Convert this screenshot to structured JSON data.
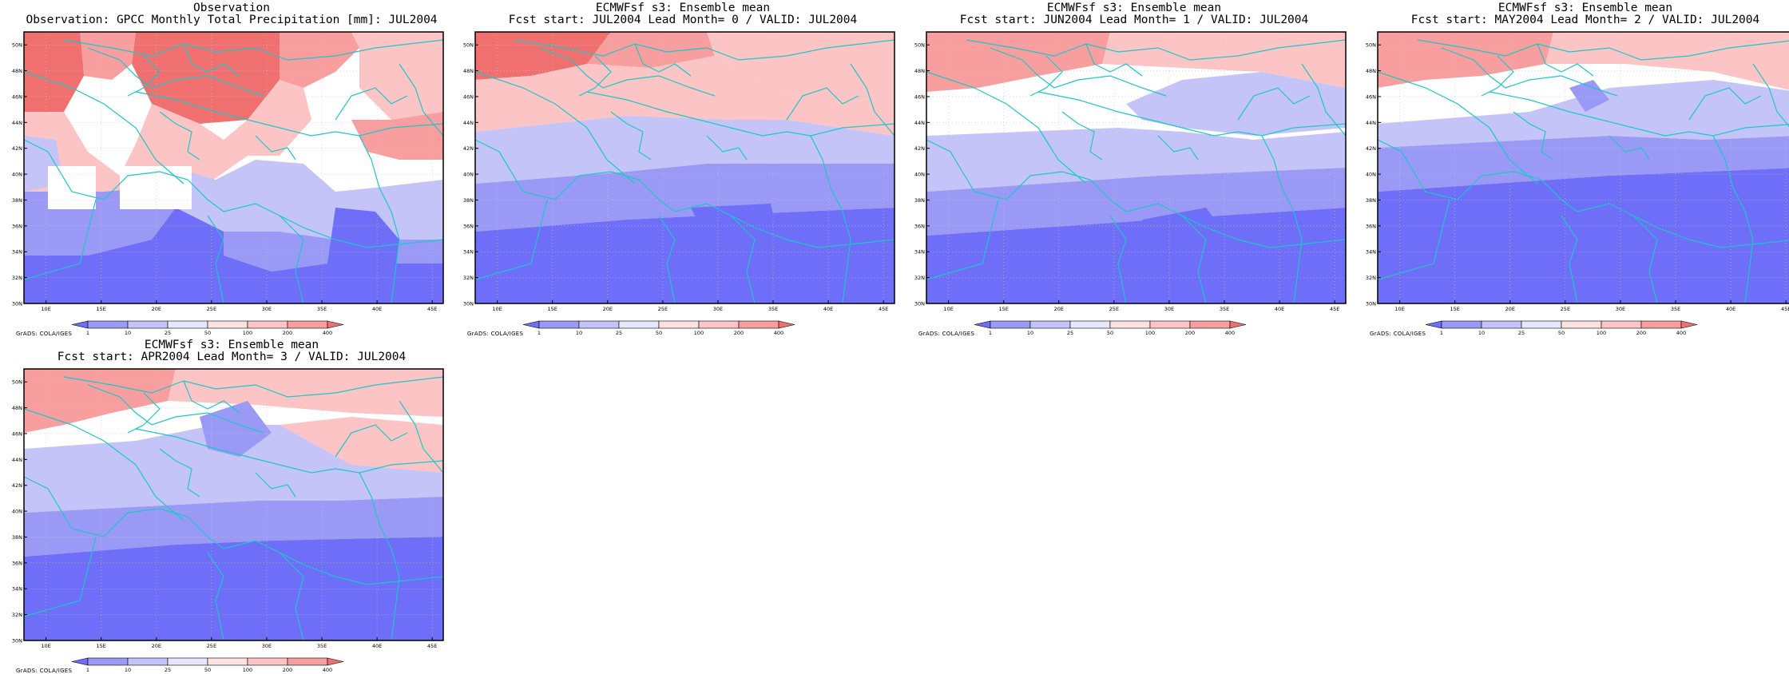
{
  "axes": {
    "lat_ticks": [
      "30N",
      "32N",
      "34N",
      "36N",
      "38N",
      "40N",
      "42N",
      "44N",
      "46N",
      "48N",
      "50N"
    ],
    "lon_ticks": [
      "10E",
      "15E",
      "20E",
      "25E",
      "30E",
      "35E",
      "40E",
      "45E"
    ],
    "lat_range": [
      30,
      51
    ],
    "lon_range": [
      8,
      46
    ]
  },
  "legend": {
    "levels": [
      "1",
      "10",
      "25",
      "50",
      "100",
      "200",
      "400"
    ],
    "colors": [
      "#6e6ef8",
      "#9a9af6",
      "#c4c4f8",
      "#e6e6fc",
      "#fde2e2",
      "#fcc4c4",
      "#f99e9e",
      "#f07070"
    ]
  },
  "credit": "GrADS: COLA/IGES",
  "panels": [
    {
      "title1": "Observation",
      "title2": "Observation: GPCC Monthly Total Precipitation [mm]: JUL2004"
    },
    {
      "title1": "ECMWFsf s3: Ensemble mean",
      "title2": "Fcst start: JUL2004  Lead Month= 0 / VALID: JUL2004"
    },
    {
      "title1": "ECMWFsf s3: Ensemble mean",
      "title2": "Fcst start: JUN2004  Lead Month= 1 / VALID: JUL2004"
    },
    {
      "title1": "ECMWFsf s3: Ensemble mean",
      "title2": "Fcst start: MAY2004  Lead Month= 2 / VALID: JUL2004"
    },
    {
      "title1": "ECMWFsf s3: Ensemble mean",
      "title2": "Fcst start: APR2004  Lead Month= 3 / VALID: JUL2004"
    }
  ]
}
